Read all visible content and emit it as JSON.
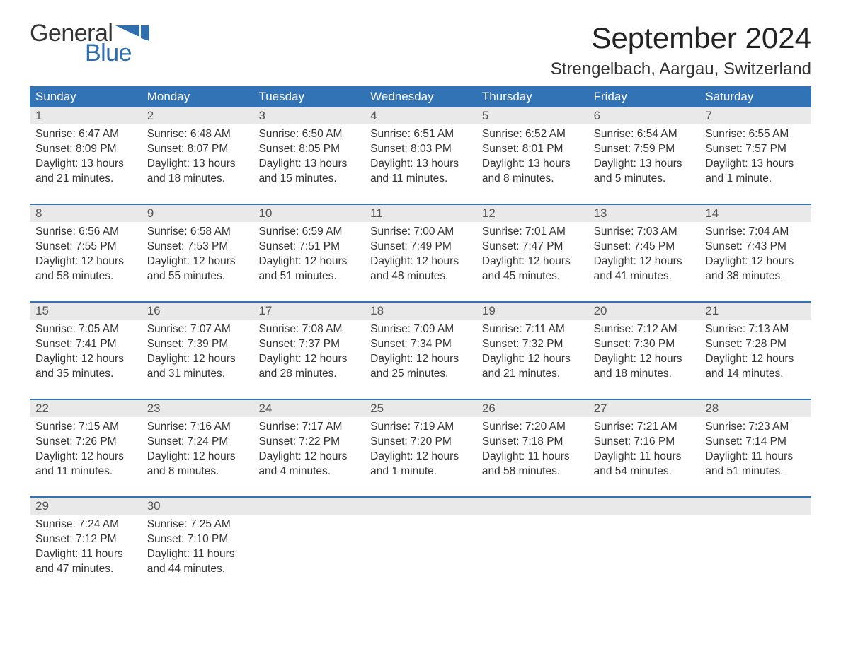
{
  "brand": {
    "line1": "General",
    "line2": "Blue",
    "color_text": "#333333",
    "color_blue": "#2f6fb0"
  },
  "title": "September 2024",
  "location": "Strengelbach, Aargau, Switzerland",
  "colors": {
    "header_bg": "#3273b6",
    "header_text": "#ffffff",
    "daynum_bg": "#e9e9e9",
    "week_border": "#3273b6",
    "body_text": "#333333",
    "page_bg": "#ffffff"
  },
  "typography": {
    "title_fontsize": 42,
    "location_fontsize": 24,
    "dayheader_fontsize": 17,
    "cell_fontsize": 15.5
  },
  "day_names": [
    "Sunday",
    "Monday",
    "Tuesday",
    "Wednesday",
    "Thursday",
    "Friday",
    "Saturday"
  ],
  "weeks": [
    [
      {
        "n": "1",
        "sr": "Sunrise: 6:47 AM",
        "ss": "Sunset: 8:09 PM",
        "d1": "Daylight: 13 hours",
        "d2": "and 21 minutes."
      },
      {
        "n": "2",
        "sr": "Sunrise: 6:48 AM",
        "ss": "Sunset: 8:07 PM",
        "d1": "Daylight: 13 hours",
        "d2": "and 18 minutes."
      },
      {
        "n": "3",
        "sr": "Sunrise: 6:50 AM",
        "ss": "Sunset: 8:05 PM",
        "d1": "Daylight: 13 hours",
        "d2": "and 15 minutes."
      },
      {
        "n": "4",
        "sr": "Sunrise: 6:51 AM",
        "ss": "Sunset: 8:03 PM",
        "d1": "Daylight: 13 hours",
        "d2": "and 11 minutes."
      },
      {
        "n": "5",
        "sr": "Sunrise: 6:52 AM",
        "ss": "Sunset: 8:01 PM",
        "d1": "Daylight: 13 hours",
        "d2": "and 8 minutes."
      },
      {
        "n": "6",
        "sr": "Sunrise: 6:54 AM",
        "ss": "Sunset: 7:59 PM",
        "d1": "Daylight: 13 hours",
        "d2": "and 5 minutes."
      },
      {
        "n": "7",
        "sr": "Sunrise: 6:55 AM",
        "ss": "Sunset: 7:57 PM",
        "d1": "Daylight: 13 hours",
        "d2": "and 1 minute."
      }
    ],
    [
      {
        "n": "8",
        "sr": "Sunrise: 6:56 AM",
        "ss": "Sunset: 7:55 PM",
        "d1": "Daylight: 12 hours",
        "d2": "and 58 minutes."
      },
      {
        "n": "9",
        "sr": "Sunrise: 6:58 AM",
        "ss": "Sunset: 7:53 PM",
        "d1": "Daylight: 12 hours",
        "d2": "and 55 minutes."
      },
      {
        "n": "10",
        "sr": "Sunrise: 6:59 AM",
        "ss": "Sunset: 7:51 PM",
        "d1": "Daylight: 12 hours",
        "d2": "and 51 minutes."
      },
      {
        "n": "11",
        "sr": "Sunrise: 7:00 AM",
        "ss": "Sunset: 7:49 PM",
        "d1": "Daylight: 12 hours",
        "d2": "and 48 minutes."
      },
      {
        "n": "12",
        "sr": "Sunrise: 7:01 AM",
        "ss": "Sunset: 7:47 PM",
        "d1": "Daylight: 12 hours",
        "d2": "and 45 minutes."
      },
      {
        "n": "13",
        "sr": "Sunrise: 7:03 AM",
        "ss": "Sunset: 7:45 PM",
        "d1": "Daylight: 12 hours",
        "d2": "and 41 minutes."
      },
      {
        "n": "14",
        "sr": "Sunrise: 7:04 AM",
        "ss": "Sunset: 7:43 PM",
        "d1": "Daylight: 12 hours",
        "d2": "and 38 minutes."
      }
    ],
    [
      {
        "n": "15",
        "sr": "Sunrise: 7:05 AM",
        "ss": "Sunset: 7:41 PM",
        "d1": "Daylight: 12 hours",
        "d2": "and 35 minutes."
      },
      {
        "n": "16",
        "sr": "Sunrise: 7:07 AM",
        "ss": "Sunset: 7:39 PM",
        "d1": "Daylight: 12 hours",
        "d2": "and 31 minutes."
      },
      {
        "n": "17",
        "sr": "Sunrise: 7:08 AM",
        "ss": "Sunset: 7:37 PM",
        "d1": "Daylight: 12 hours",
        "d2": "and 28 minutes."
      },
      {
        "n": "18",
        "sr": "Sunrise: 7:09 AM",
        "ss": "Sunset: 7:34 PM",
        "d1": "Daylight: 12 hours",
        "d2": "and 25 minutes."
      },
      {
        "n": "19",
        "sr": "Sunrise: 7:11 AM",
        "ss": "Sunset: 7:32 PM",
        "d1": "Daylight: 12 hours",
        "d2": "and 21 minutes."
      },
      {
        "n": "20",
        "sr": "Sunrise: 7:12 AM",
        "ss": "Sunset: 7:30 PM",
        "d1": "Daylight: 12 hours",
        "d2": "and 18 minutes."
      },
      {
        "n": "21",
        "sr": "Sunrise: 7:13 AM",
        "ss": "Sunset: 7:28 PM",
        "d1": "Daylight: 12 hours",
        "d2": "and 14 minutes."
      }
    ],
    [
      {
        "n": "22",
        "sr": "Sunrise: 7:15 AM",
        "ss": "Sunset: 7:26 PM",
        "d1": "Daylight: 12 hours",
        "d2": "and 11 minutes."
      },
      {
        "n": "23",
        "sr": "Sunrise: 7:16 AM",
        "ss": "Sunset: 7:24 PM",
        "d1": "Daylight: 12 hours",
        "d2": "and 8 minutes."
      },
      {
        "n": "24",
        "sr": "Sunrise: 7:17 AM",
        "ss": "Sunset: 7:22 PM",
        "d1": "Daylight: 12 hours",
        "d2": "and 4 minutes."
      },
      {
        "n": "25",
        "sr": "Sunrise: 7:19 AM",
        "ss": "Sunset: 7:20 PM",
        "d1": "Daylight: 12 hours",
        "d2": "and 1 minute."
      },
      {
        "n": "26",
        "sr": "Sunrise: 7:20 AM",
        "ss": "Sunset: 7:18 PM",
        "d1": "Daylight: 11 hours",
        "d2": "and 58 minutes."
      },
      {
        "n": "27",
        "sr": "Sunrise: 7:21 AM",
        "ss": "Sunset: 7:16 PM",
        "d1": "Daylight: 11 hours",
        "d2": "and 54 minutes."
      },
      {
        "n": "28",
        "sr": "Sunrise: 7:23 AM",
        "ss": "Sunset: 7:14 PM",
        "d1": "Daylight: 11 hours",
        "d2": "and 51 minutes."
      }
    ],
    [
      {
        "n": "29",
        "sr": "Sunrise: 7:24 AM",
        "ss": "Sunset: 7:12 PM",
        "d1": "Daylight: 11 hours",
        "d2": "and 47 minutes."
      },
      {
        "n": "30",
        "sr": "Sunrise: 7:25 AM",
        "ss": "Sunset: 7:10 PM",
        "d1": "Daylight: 11 hours",
        "d2": "and 44 minutes."
      },
      {
        "n": "",
        "sr": "",
        "ss": "",
        "d1": "",
        "d2": ""
      },
      {
        "n": "",
        "sr": "",
        "ss": "",
        "d1": "",
        "d2": ""
      },
      {
        "n": "",
        "sr": "",
        "ss": "",
        "d1": "",
        "d2": ""
      },
      {
        "n": "",
        "sr": "",
        "ss": "",
        "d1": "",
        "d2": ""
      },
      {
        "n": "",
        "sr": "",
        "ss": "",
        "d1": "",
        "d2": ""
      }
    ]
  ]
}
